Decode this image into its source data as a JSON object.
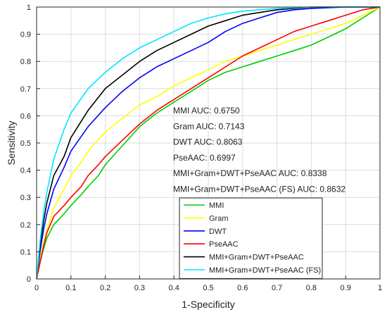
{
  "chart_data": {
    "type": "line",
    "title": "",
    "xlabel": "1-Specificity",
    "ylabel": "Sensitivity",
    "xlim": [
      0,
      1
    ],
    "ylim": [
      0,
      1
    ],
    "xticks": [
      "0",
      "0.1",
      "0.2",
      "0.3",
      "0.4",
      "0.5",
      "0.6",
      "0.7",
      "0.8",
      "0.9",
      "1"
    ],
    "yticks": [
      "0",
      "0.1",
      "0.2",
      "0.3",
      "0.4",
      "0.5",
      "0.6",
      "0.7",
      "0.8",
      "0.9",
      "1"
    ],
    "grid": true,
    "legend_position": "bottom-center",
    "annotations": [
      "MMI AUC: 0.6750",
      "Gram AUC: 0.7143",
      "DWT AUC: 0.8063",
      "PseAAC: 0.6997",
      "MMI+Gram+DWT+PseAAC AUC: 0.8338",
      "MMI+Gram+DWT+PseAAC (FS) AUC: 0.8632"
    ],
    "series": [
      {
        "name": "MMI",
        "color": "#00cc00",
        "x": [
          0,
          0.01,
          0.02,
          0.03,
          0.05,
          0.08,
          0.1,
          0.13,
          0.15,
          0.18,
          0.2,
          0.25,
          0.3,
          0.35,
          0.4,
          0.45,
          0.5,
          0.55,
          0.6,
          0.65,
          0.7,
          0.75,
          0.8,
          0.85,
          0.9,
          0.95,
          1.0
        ],
        "y": [
          0,
          0.06,
          0.11,
          0.15,
          0.2,
          0.24,
          0.27,
          0.31,
          0.34,
          0.38,
          0.42,
          0.49,
          0.56,
          0.61,
          0.65,
          0.69,
          0.73,
          0.76,
          0.78,
          0.8,
          0.82,
          0.84,
          0.86,
          0.89,
          0.92,
          0.96,
          1.0
        ]
      },
      {
        "name": "Gram",
        "color": "#ffff00",
        "x": [
          0,
          0.01,
          0.02,
          0.03,
          0.05,
          0.08,
          0.1,
          0.13,
          0.15,
          0.2,
          0.25,
          0.3,
          0.35,
          0.4,
          0.45,
          0.5,
          0.55,
          0.6,
          0.65,
          0.7,
          0.75,
          0.8,
          0.85,
          0.9,
          0.95,
          1.0
        ],
        "y": [
          0,
          0.07,
          0.13,
          0.18,
          0.26,
          0.33,
          0.38,
          0.43,
          0.47,
          0.54,
          0.59,
          0.64,
          0.67,
          0.71,
          0.74,
          0.77,
          0.8,
          0.82,
          0.84,
          0.86,
          0.88,
          0.9,
          0.92,
          0.94,
          0.97,
          1.0
        ]
      },
      {
        "name": "DWT",
        "color": "#0000ff",
        "x": [
          0,
          0.01,
          0.02,
          0.03,
          0.05,
          0.08,
          0.1,
          0.15,
          0.2,
          0.25,
          0.3,
          0.35,
          0.4,
          0.45,
          0.5,
          0.55,
          0.6,
          0.65,
          0.7,
          0.75,
          0.8,
          0.9,
          1.0
        ],
        "y": [
          0,
          0.1,
          0.18,
          0.24,
          0.33,
          0.41,
          0.47,
          0.56,
          0.63,
          0.69,
          0.74,
          0.78,
          0.81,
          0.84,
          0.87,
          0.91,
          0.94,
          0.96,
          0.98,
          0.99,
          0.995,
          1.0,
          1.0
        ]
      },
      {
        "name": "PseAAC",
        "color": "#ff0000",
        "x": [
          0,
          0.01,
          0.02,
          0.03,
          0.05,
          0.08,
          0.1,
          0.13,
          0.15,
          0.18,
          0.2,
          0.25,
          0.3,
          0.35,
          0.4,
          0.45,
          0.5,
          0.55,
          0.6,
          0.65,
          0.7,
          0.75,
          0.8,
          0.85,
          0.9,
          0.95,
          1.0
        ],
        "y": [
          0,
          0.06,
          0.12,
          0.17,
          0.23,
          0.27,
          0.3,
          0.34,
          0.38,
          0.42,
          0.45,
          0.51,
          0.57,
          0.62,
          0.66,
          0.7,
          0.74,
          0.78,
          0.82,
          0.85,
          0.88,
          0.91,
          0.93,
          0.95,
          0.97,
          0.99,
          1.0
        ]
      },
      {
        "name": "MMI+Gram+DWT+PseAAC",
        "color": "#000000",
        "x": [
          0,
          0.01,
          0.02,
          0.03,
          0.05,
          0.08,
          0.1,
          0.15,
          0.2,
          0.25,
          0.3,
          0.35,
          0.4,
          0.45,
          0.5,
          0.55,
          0.6,
          0.65,
          0.7,
          0.8,
          0.9,
          1.0
        ],
        "y": [
          0,
          0.12,
          0.21,
          0.28,
          0.38,
          0.45,
          0.52,
          0.62,
          0.7,
          0.75,
          0.8,
          0.84,
          0.87,
          0.9,
          0.93,
          0.95,
          0.97,
          0.98,
          0.99,
          1.0,
          1.0,
          1.0
        ]
      },
      {
        "name": "MMI+Gram+DWT+PseAAC (FS)",
        "color": "#00e5ff",
        "x": [
          0,
          0.01,
          0.02,
          0.03,
          0.05,
          0.08,
          0.1,
          0.15,
          0.2,
          0.25,
          0.3,
          0.35,
          0.4,
          0.45,
          0.5,
          0.55,
          0.6,
          0.7,
          0.8,
          0.9,
          1.0
        ],
        "y": [
          0,
          0.14,
          0.24,
          0.32,
          0.44,
          0.55,
          0.61,
          0.7,
          0.76,
          0.81,
          0.85,
          0.88,
          0.91,
          0.94,
          0.96,
          0.975,
          0.985,
          0.995,
          1.0,
          1.0,
          1.0
        ]
      }
    ]
  }
}
